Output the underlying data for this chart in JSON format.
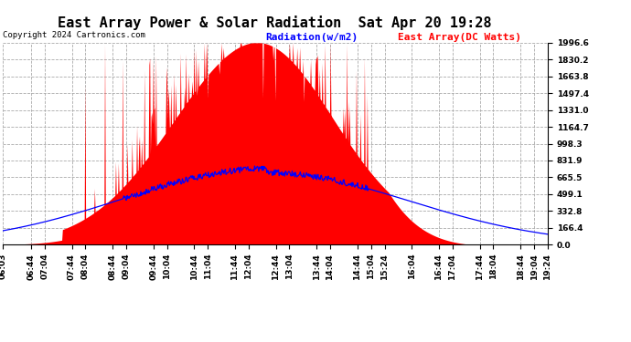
{
  "title": "East Array Power & Solar Radiation  Sat Apr 20 19:28",
  "copyright": "Copyright 2024 Cartronics.com",
  "legend_radiation": "Radiation(w/m2)",
  "legend_east_array": "East Array(DC Watts)",
  "radiation_color": "red",
  "east_array_color": "blue",
  "background_color": "#ffffff",
  "plot_bg_color": "#ffffff",
  "grid_color": "#aaaaaa",
  "yticks": [
    0.0,
    166.4,
    332.8,
    499.1,
    665.5,
    831.9,
    998.3,
    1164.7,
    1331.0,
    1497.4,
    1663.8,
    1830.2,
    1996.6
  ],
  "ymax": 1996.6,
  "ymin": 0.0,
  "title_fontsize": 11,
  "copyright_fontsize": 6.5,
  "legend_fontsize": 8,
  "tick_fontsize": 6.5,
  "xtick_labels": [
    "06:03",
    "06:44",
    "07:04",
    "07:44",
    "08:04",
    "08:44",
    "09:04",
    "09:44",
    "10:04",
    "10:44",
    "11:04",
    "11:44",
    "12:04",
    "12:44",
    "13:04",
    "13:44",
    "14:04",
    "14:44",
    "15:04",
    "15:24",
    "16:04",
    "16:44",
    "17:04",
    "17:44",
    "18:04",
    "18:44",
    "19:04",
    "19:24"
  ],
  "ytick_label_strs": [
    "0.0",
    "166.4",
    "332.8",
    "499.1",
    "665.5",
    "831.9",
    "998.3",
    "1164.7",
    "1331.0",
    "1497.4",
    "1663.8",
    "1830.2",
    "1996.6"
  ]
}
